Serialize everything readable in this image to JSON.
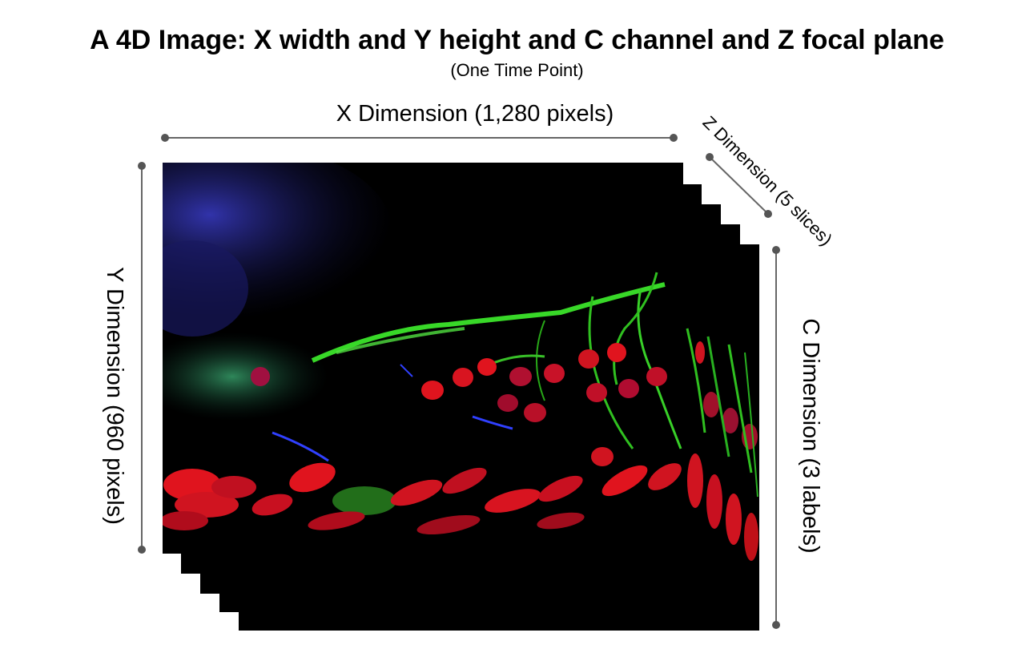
{
  "title": "A 4D Image: X width and Y height and C channel and Z focal plane",
  "subtitle": "(One Time Point)",
  "dimensions": {
    "x": "X Dimension (1,280 pixels)",
    "y": "Y Dimension (960 pixels)",
    "z": "Z Dimension (5 slices)",
    "c": "C Dimension (3 labels)"
  },
  "colors": {
    "axis_line": "#666666",
    "background_slice": "#000000",
    "channel_red": "#e0141e",
    "channel_green": "#32d21e",
    "channel_blue": "#2832c8"
  }
}
